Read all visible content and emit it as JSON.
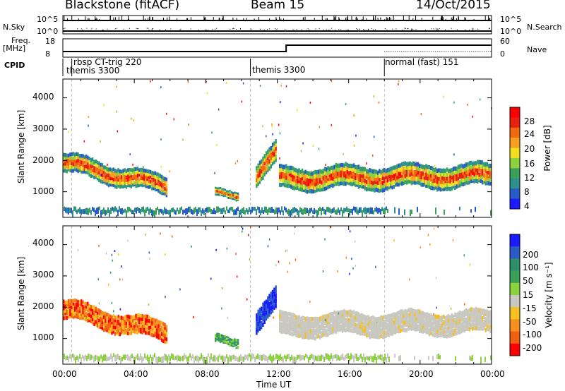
{
  "header": {
    "title": "Blackstone (fitACF)",
    "beam": "Beam 15",
    "date": "14/Oct/2015"
  },
  "status_panels": {
    "nsky_label": "N.Sky",
    "nsearch_label": "N.Search",
    "left_ticks": [
      "10^5",
      "10^0"
    ],
    "right_ticks": [
      "10^5",
      "10^0"
    ],
    "freq_label_1": "Freq.",
    "freq_label_2": "[MHz]",
    "freq_ticks": [
      "18",
      "8"
    ],
    "nave_label": "Nave",
    "nave_ticks": [
      "60",
      "0"
    ],
    "cpid_label": "CPID",
    "cpid_entries": [
      "rbsp CT-trig 220",
      "themis 3300",
      "themis 3300",
      "normal (fast) 151"
    ]
  },
  "chart_data": [
    {
      "type": "heatmap",
      "title": "",
      "xlabel": "Time UT",
      "ylabel": "Slant Range [km]",
      "x_ticks": [
        "00:00",
        "04:00",
        "08:00",
        "12:00",
        "16:00",
        "20:00",
        "00:00"
      ],
      "y_ticks": [
        "1000",
        "2000",
        "3000",
        "4000"
      ],
      "xlim_hours": [
        0,
        24
      ],
      "ylim_km": [
        180,
        4600
      ],
      "colorbar": {
        "label": "Power [dB]",
        "ticks": [
          "4",
          "8",
          "12",
          "16",
          "20",
          "24",
          "28"
        ],
        "colors": [
          "#1a1aff",
          "#2a5cc8",
          "#2e8f8f",
          "#3aa05a",
          "#8cd23c",
          "#f0e020",
          "#f5a020",
          "#f06a10",
          "#e82010",
          "#ff0000"
        ]
      }
    },
    {
      "type": "heatmap",
      "title": "",
      "xlabel": "Time UT",
      "ylabel": "Slant Range [km]",
      "x_ticks": [
        "00:00",
        "04:00",
        "08:00",
        "12:00",
        "16:00",
        "20:00",
        "00:00"
      ],
      "y_ticks": [
        "1000",
        "2000",
        "3000",
        "4000"
      ],
      "xlim_hours": [
        0,
        24
      ],
      "ylim_km": [
        180,
        4600
      ],
      "colorbar": {
        "label": "Velocity [m s⁻¹]",
        "ticks": [
          "200",
          "100",
          "50",
          "15",
          "-15",
          "-50",
          "-100",
          "-200"
        ],
        "colors": [
          "#1a1aff",
          "#2a5cc8",
          "#2e8f6a",
          "#3aa05a",
          "#8cd23c",
          "#c8c8c0",
          "#f5c020",
          "#f59020",
          "#f06010",
          "#ff0000"
        ]
      }
    }
  ],
  "axis": {
    "time_label": "Time UT"
  }
}
